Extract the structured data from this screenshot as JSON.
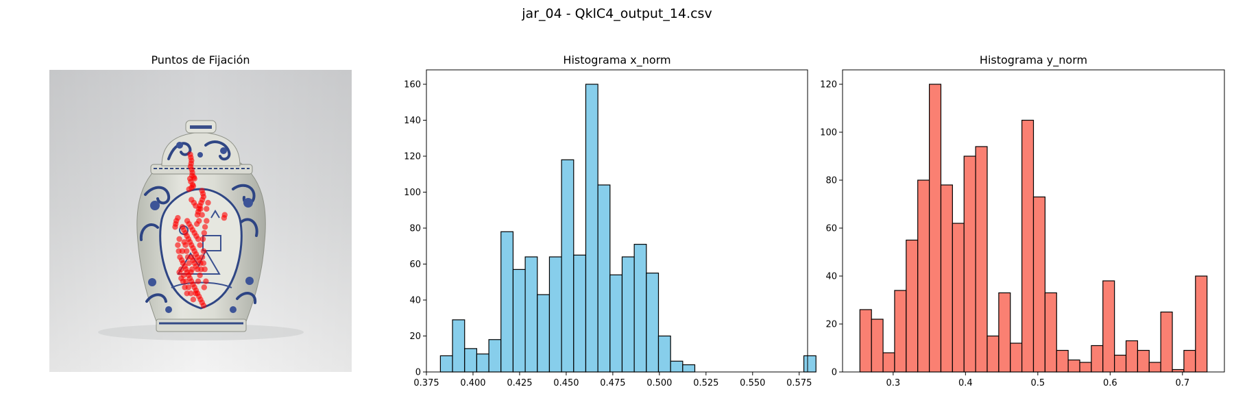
{
  "figure": {
    "suptitle": "jar_04 - QklC4_output_14.csv"
  },
  "colors": {
    "fixation": "#ff0000",
    "hist_x_fill": "#87ceeb",
    "hist_y_fill": "#fa8072",
    "edge": "#000000"
  },
  "panel_image": {
    "title": "Puntos de Fijación",
    "picture": "blue-and-white porcelain ginger jar with lid, grey studio background",
    "fixation_points_normalized": [
      [
        0.466,
        0.28
      ],
      [
        0.468,
        0.29
      ],
      [
        0.47,
        0.3
      ],
      [
        0.469,
        0.31
      ],
      [
        0.467,
        0.32
      ],
      [
        0.471,
        0.33
      ],
      [
        0.473,
        0.34
      ],
      [
        0.472,
        0.35
      ],
      [
        0.465,
        0.36
      ],
      [
        0.468,
        0.37
      ],
      [
        0.474,
        0.38
      ],
      [
        0.476,
        0.385
      ],
      [
        0.47,
        0.39
      ],
      [
        0.462,
        0.395
      ],
      [
        0.48,
        0.36
      ],
      [
        0.478,
        0.355
      ],
      [
        0.505,
        0.4
      ],
      [
        0.508,
        0.41
      ],
      [
        0.51,
        0.42
      ],
      [
        0.506,
        0.43
      ],
      [
        0.502,
        0.44
      ],
      [
        0.498,
        0.45
      ],
      [
        0.495,
        0.46
      ],
      [
        0.492,
        0.47
      ],
      [
        0.49,
        0.48
      ],
      [
        0.58,
        0.48
      ],
      [
        0.578,
        0.49
      ],
      [
        0.425,
        0.49
      ],
      [
        0.42,
        0.5
      ],
      [
        0.418,
        0.51
      ],
      [
        0.416,
        0.52
      ],
      [
        0.44,
        0.52
      ],
      [
        0.445,
        0.53
      ],
      [
        0.45,
        0.54
      ],
      [
        0.455,
        0.55
      ],
      [
        0.46,
        0.56
      ],
      [
        0.465,
        0.57
      ],
      [
        0.47,
        0.58
      ],
      [
        0.475,
        0.59
      ],
      [
        0.48,
        0.6
      ],
      [
        0.485,
        0.61
      ],
      [
        0.49,
        0.62
      ],
      [
        0.495,
        0.63
      ],
      [
        0.5,
        0.64
      ],
      [
        0.43,
        0.56
      ],
      [
        0.425,
        0.58
      ],
      [
        0.428,
        0.6
      ],
      [
        0.432,
        0.62
      ],
      [
        0.438,
        0.63
      ],
      [
        0.442,
        0.64
      ],
      [
        0.448,
        0.65
      ],
      [
        0.452,
        0.66
      ],
      [
        0.456,
        0.67
      ],
      [
        0.46,
        0.68
      ],
      [
        0.465,
        0.69
      ],
      [
        0.47,
        0.7
      ],
      [
        0.475,
        0.71
      ],
      [
        0.48,
        0.72
      ],
      [
        0.485,
        0.73
      ],
      [
        0.49,
        0.74
      ],
      [
        0.495,
        0.75
      ],
      [
        0.5,
        0.76
      ],
      [
        0.505,
        0.77
      ],
      [
        0.51,
        0.78
      ],
      [
        0.47,
        0.62
      ],
      [
        0.475,
        0.63
      ],
      [
        0.48,
        0.64
      ],
      [
        0.485,
        0.65
      ],
      [
        0.49,
        0.66
      ],
      [
        0.472,
        0.66
      ],
      [
        0.468,
        0.67
      ],
      [
        0.462,
        0.64
      ],
      [
        0.458,
        0.62
      ],
      [
        0.454,
        0.6
      ],
      [
        0.45,
        0.58
      ],
      [
        0.446,
        0.57
      ],
      [
        0.44,
        0.6
      ],
      [
        0.436,
        0.66
      ],
      [
        0.444,
        0.68
      ],
      [
        0.452,
        0.7
      ],
      [
        0.46,
        0.72
      ],
      [
        0.468,
        0.74
      ],
      [
        0.476,
        0.76
      ],
      [
        0.484,
        0.74
      ],
      [
        0.492,
        0.7
      ],
      [
        0.498,
        0.68
      ],
      [
        0.502,
        0.66
      ],
      [
        0.506,
        0.62
      ],
      [
        0.51,
        0.6
      ],
      [
        0.498,
        0.58
      ],
      [
        0.492,
        0.56
      ],
      [
        0.486,
        0.55
      ],
      [
        0.48,
        0.54
      ],
      [
        0.474,
        0.53
      ],
      [
        0.468,
        0.52
      ],
      [
        0.462,
        0.51
      ],
      [
        0.456,
        0.5
      ],
      [
        0.52,
        0.5
      ],
      [
        0.515,
        0.52
      ],
      [
        0.512,
        0.54
      ],
      [
        0.508,
        0.56
      ],
      [
        0.455,
        0.74
      ],
      [
        0.448,
        0.72
      ],
      [
        0.442,
        0.7
      ],
      [
        0.436,
        0.69
      ],
      [
        0.43,
        0.67
      ],
      [
        0.505,
        0.48
      ],
      [
        0.5,
        0.46
      ],
      [
        0.495,
        0.5
      ],
      [
        0.488,
        0.51
      ],
      [
        0.52,
        0.46
      ],
      [
        0.525,
        0.44
      ],
      [
        0.47,
        0.43
      ],
      [
        0.478,
        0.44
      ],
      [
        0.484,
        0.45
      ],
      [
        0.51,
        0.64
      ],
      [
        0.514,
        0.66
      ],
      [
        0.518,
        0.7
      ],
      [
        0.512,
        0.72
      ]
    ]
  },
  "chart_data": [
    {
      "type": "bar",
      "title": "Histograma x_norm",
      "xlabel": "",
      "ylabel": "",
      "bin_start": 0.3825,
      "bin_width": 0.0065,
      "values": [
        9,
        29,
        13,
        10,
        18,
        78,
        57,
        64,
        43,
        64,
        118,
        65,
        160,
        104,
        54,
        64,
        71,
        55,
        20,
        6,
        4,
        0,
        0,
        0,
        0,
        0,
        0,
        0,
        0,
        0,
        9
      ],
      "xlim": [
        0.375,
        0.5795
      ],
      "ylim": [
        0,
        168
      ],
      "xticks": [
        0.375,
        0.4,
        0.425,
        0.45,
        0.475,
        0.5,
        0.525,
        0.55,
        0.575
      ],
      "xtick_labels": [
        "0.375",
        "0.400",
        "0.425",
        "0.450",
        "0.475",
        "0.500",
        "0.525",
        "0.550",
        "0.575"
      ],
      "yticks": [
        0,
        20,
        40,
        60,
        80,
        100,
        120,
        140,
        160
      ],
      "ytick_labels": [
        "0",
        "20",
        "40",
        "60",
        "80",
        "100",
        "120",
        "140",
        "160"
      ]
    },
    {
      "type": "bar",
      "title": "Histograma y_norm",
      "xlabel": "",
      "ylabel": "",
      "bin_start": 0.254,
      "bin_width": 0.016,
      "values": [
        26,
        22,
        8,
        34,
        55,
        80,
        120,
        78,
        62,
        90,
        94,
        15,
        33,
        12,
        105,
        73,
        33,
        9,
        5,
        4,
        11,
        38,
        7,
        13,
        9,
        4,
        25,
        1,
        9,
        40
      ],
      "xlim": [
        0.23,
        0.758
      ],
      "ylim": [
        0,
        126
      ],
      "xticks": [
        0.3,
        0.4,
        0.5,
        0.6,
        0.7
      ],
      "xtick_labels": [
        "0.3",
        "0.4",
        "0.5",
        "0.6",
        "0.7"
      ],
      "yticks": [
        0,
        20,
        40,
        60,
        80,
        100,
        120
      ],
      "ytick_labels": [
        "0",
        "20",
        "40",
        "60",
        "80",
        "100",
        "120"
      ]
    }
  ]
}
